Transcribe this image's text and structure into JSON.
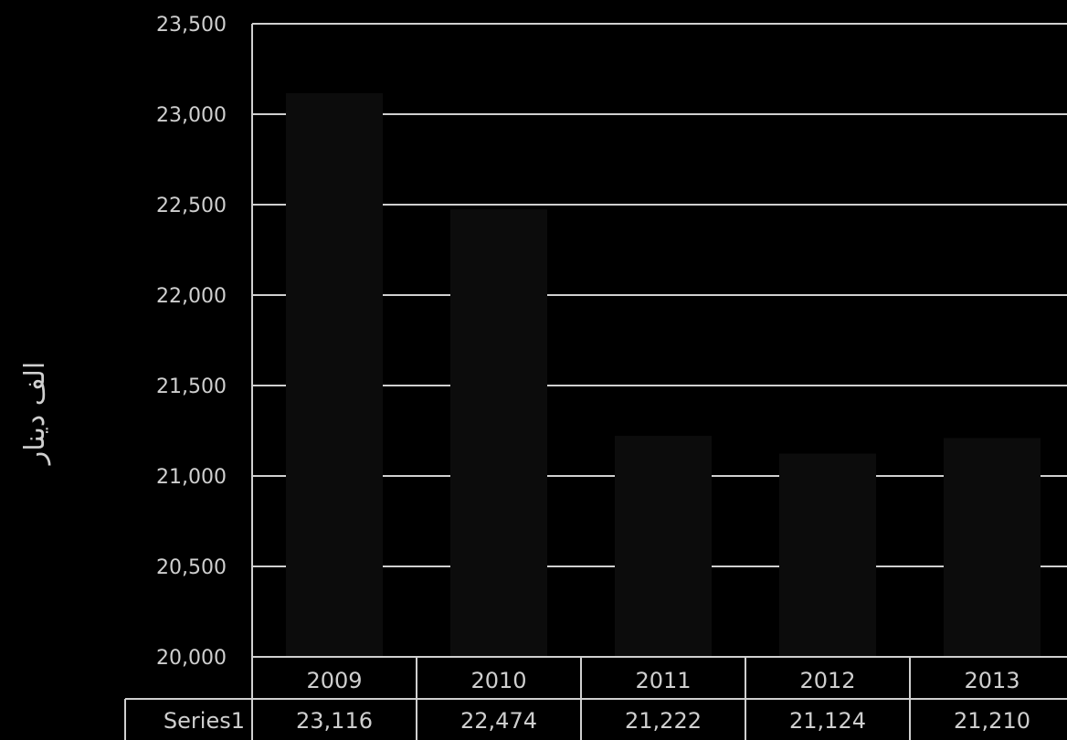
{
  "chart_data": {
    "type": "bar",
    "ylabel": "الف دينار",
    "categories": [
      "2009",
      "2010",
      "2011",
      "2012",
      "2013"
    ],
    "series": [
      {
        "name": "Series1",
        "values": [
          23116,
          22474,
          21222,
          21124,
          21210
        ]
      }
    ],
    "table_values": [
      "23,116",
      "22,474",
      "21,222",
      "21,124",
      "21,210"
    ],
    "ylim": [
      20000,
      23500
    ],
    "yticks": [
      "20,000",
      "20,500",
      "21,000",
      "21,500",
      "22,000",
      "22,500",
      "23,000",
      "23,500"
    ],
    "grid": true,
    "data_table": true,
    "colors": {
      "background": "#000000",
      "bar": "#0c0c0c",
      "grid": "#d0d0d0",
      "text": "#cfcfcf"
    }
  }
}
